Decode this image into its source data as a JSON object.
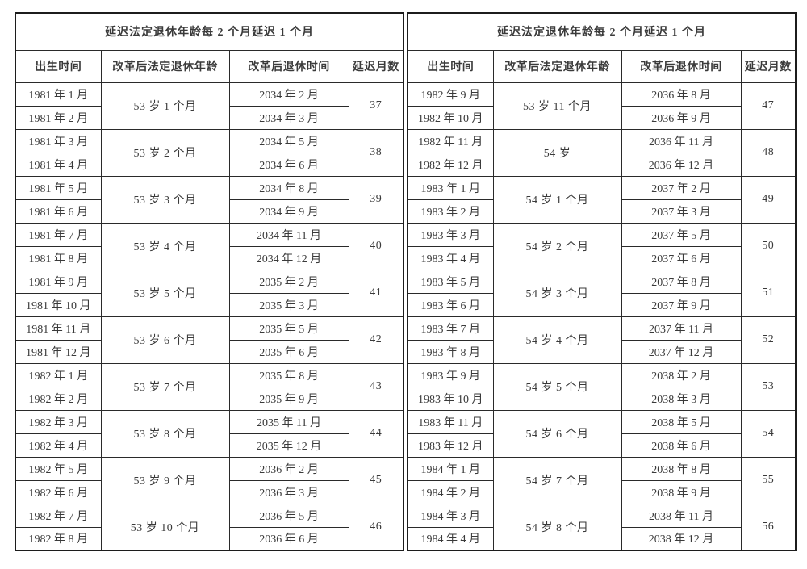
{
  "tables": [
    {
      "title": "延迟法定退休年龄每 2 个月延迟 1 个月",
      "columns": [
        "出生时间",
        "改革后法定退休年龄",
        "改革后退休时间",
        "延迟月数"
      ],
      "groups": [
        {
          "births": [
            "1981 年 1 月",
            "1981 年 2 月"
          ],
          "age": "53 岁 1 个月",
          "retires": [
            "2034 年 2 月",
            "2034 年 3 月"
          ],
          "delay": "37"
        },
        {
          "births": [
            "1981 年 3 月",
            "1981 年 4 月"
          ],
          "age": "53 岁 2 个月",
          "retires": [
            "2034 年 5 月",
            "2034 年 6 月"
          ],
          "delay": "38"
        },
        {
          "births": [
            "1981 年 5 月",
            "1981 年 6 月"
          ],
          "age": "53 岁 3 个月",
          "retires": [
            "2034 年 8 月",
            "2034 年 9 月"
          ],
          "delay": "39"
        },
        {
          "births": [
            "1981 年 7 月",
            "1981 年 8 月"
          ],
          "age": "53 岁 4 个月",
          "retires": [
            "2034 年 11 月",
            "2034 年 12 月"
          ],
          "delay": "40"
        },
        {
          "births": [
            "1981 年 9 月",
            "1981 年 10 月"
          ],
          "age": "53 岁 5 个月",
          "retires": [
            "2035 年 2 月",
            "2035 年 3 月"
          ],
          "delay": "41"
        },
        {
          "births": [
            "1981 年 11 月",
            "1981 年 12 月"
          ],
          "age": "53 岁 6 个月",
          "retires": [
            "2035 年 5 月",
            "2035 年 6 月"
          ],
          "delay": "42"
        },
        {
          "births": [
            "1982 年 1 月",
            "1982 年 2 月"
          ],
          "age": "53 岁 7 个月",
          "retires": [
            "2035 年 8 月",
            "2035 年 9 月"
          ],
          "delay": "43"
        },
        {
          "births": [
            "1982 年 3 月",
            "1982 年 4 月"
          ],
          "age": "53 岁 8 个月",
          "retires": [
            "2035 年 11 月",
            "2035 年 12 月"
          ],
          "delay": "44"
        },
        {
          "births": [
            "1982 年 5 月",
            "1982 年 6 月"
          ],
          "age": "53 岁 9 个月",
          "retires": [
            "2036 年 2 月",
            "2036 年 3 月"
          ],
          "delay": "45"
        },
        {
          "births": [
            "1982 年 7 月",
            "1982 年 8 月"
          ],
          "age": "53 岁 10 个月",
          "retires": [
            "2036 年 5 月",
            "2036 年 6 月"
          ],
          "delay": "46"
        }
      ]
    },
    {
      "title": "延迟法定退休年龄每 2 个月延迟 1 个月",
      "columns": [
        "出生时间",
        "改革后法定退休年龄",
        "改革后退休时间",
        "延迟月数"
      ],
      "groups": [
        {
          "births": [
            "1982 年 9 月",
            "1982 年 10 月"
          ],
          "age": "53 岁 11 个月",
          "retires": [
            "2036 年 8 月",
            "2036 年 9 月"
          ],
          "delay": "47"
        },
        {
          "births": [
            "1982 年 11 月",
            "1982 年 12 月"
          ],
          "age": "54 岁",
          "retires": [
            "2036 年 11 月",
            "2036 年 12 月"
          ],
          "delay": "48"
        },
        {
          "births": [
            "1983 年 1 月",
            "1983 年 2 月"
          ],
          "age": "54 岁 1 个月",
          "retires": [
            "2037 年 2 月",
            "2037 年 3 月"
          ],
          "delay": "49"
        },
        {
          "births": [
            "1983 年 3 月",
            "1983 年 4 月"
          ],
          "age": "54 岁 2 个月",
          "retires": [
            "2037 年 5 月",
            "2037 年 6 月"
          ],
          "delay": "50"
        },
        {
          "births": [
            "1983 年 5 月",
            "1983 年 6 月"
          ],
          "age": "54 岁 3 个月",
          "retires": [
            "2037 年 8 月",
            "2037 年 9 月"
          ],
          "delay": "51"
        },
        {
          "births": [
            "1983 年 7 月",
            "1983 年 8 月"
          ],
          "age": "54 岁 4 个月",
          "retires": [
            "2037 年 11 月",
            "2037 年 12 月"
          ],
          "delay": "52"
        },
        {
          "births": [
            "1983 年 9 月",
            "1983 年 10 月"
          ],
          "age": "54 岁 5 个月",
          "retires": [
            "2038 年 2 月",
            "2038 年 3 月"
          ],
          "delay": "53"
        },
        {
          "births": [
            "1983 年 11 月",
            "1983 年 12 月"
          ],
          "age": "54 岁 6 个月",
          "retires": [
            "2038 年 5 月",
            "2038 年 6 月"
          ],
          "delay": "54"
        },
        {
          "births": [
            "1984 年 1 月",
            "1984 年 2 月"
          ],
          "age": "54 岁 7 个月",
          "retires": [
            "2038 年 8 月",
            "2038 年 9 月"
          ],
          "delay": "55"
        },
        {
          "births": [
            "1984 年 3 月",
            "1984 年 4 月"
          ],
          "age": "54 岁 8 个月",
          "retires": [
            "2038 年 11 月",
            "2038 年 12 月"
          ],
          "delay": "56"
        }
      ]
    }
  ],
  "colors": {
    "border": "#2a2a2a",
    "outer_border": "#1c1c1c",
    "header_text": "#111111",
    "body_text": "#3a3a3a",
    "background": "#ffffff"
  }
}
